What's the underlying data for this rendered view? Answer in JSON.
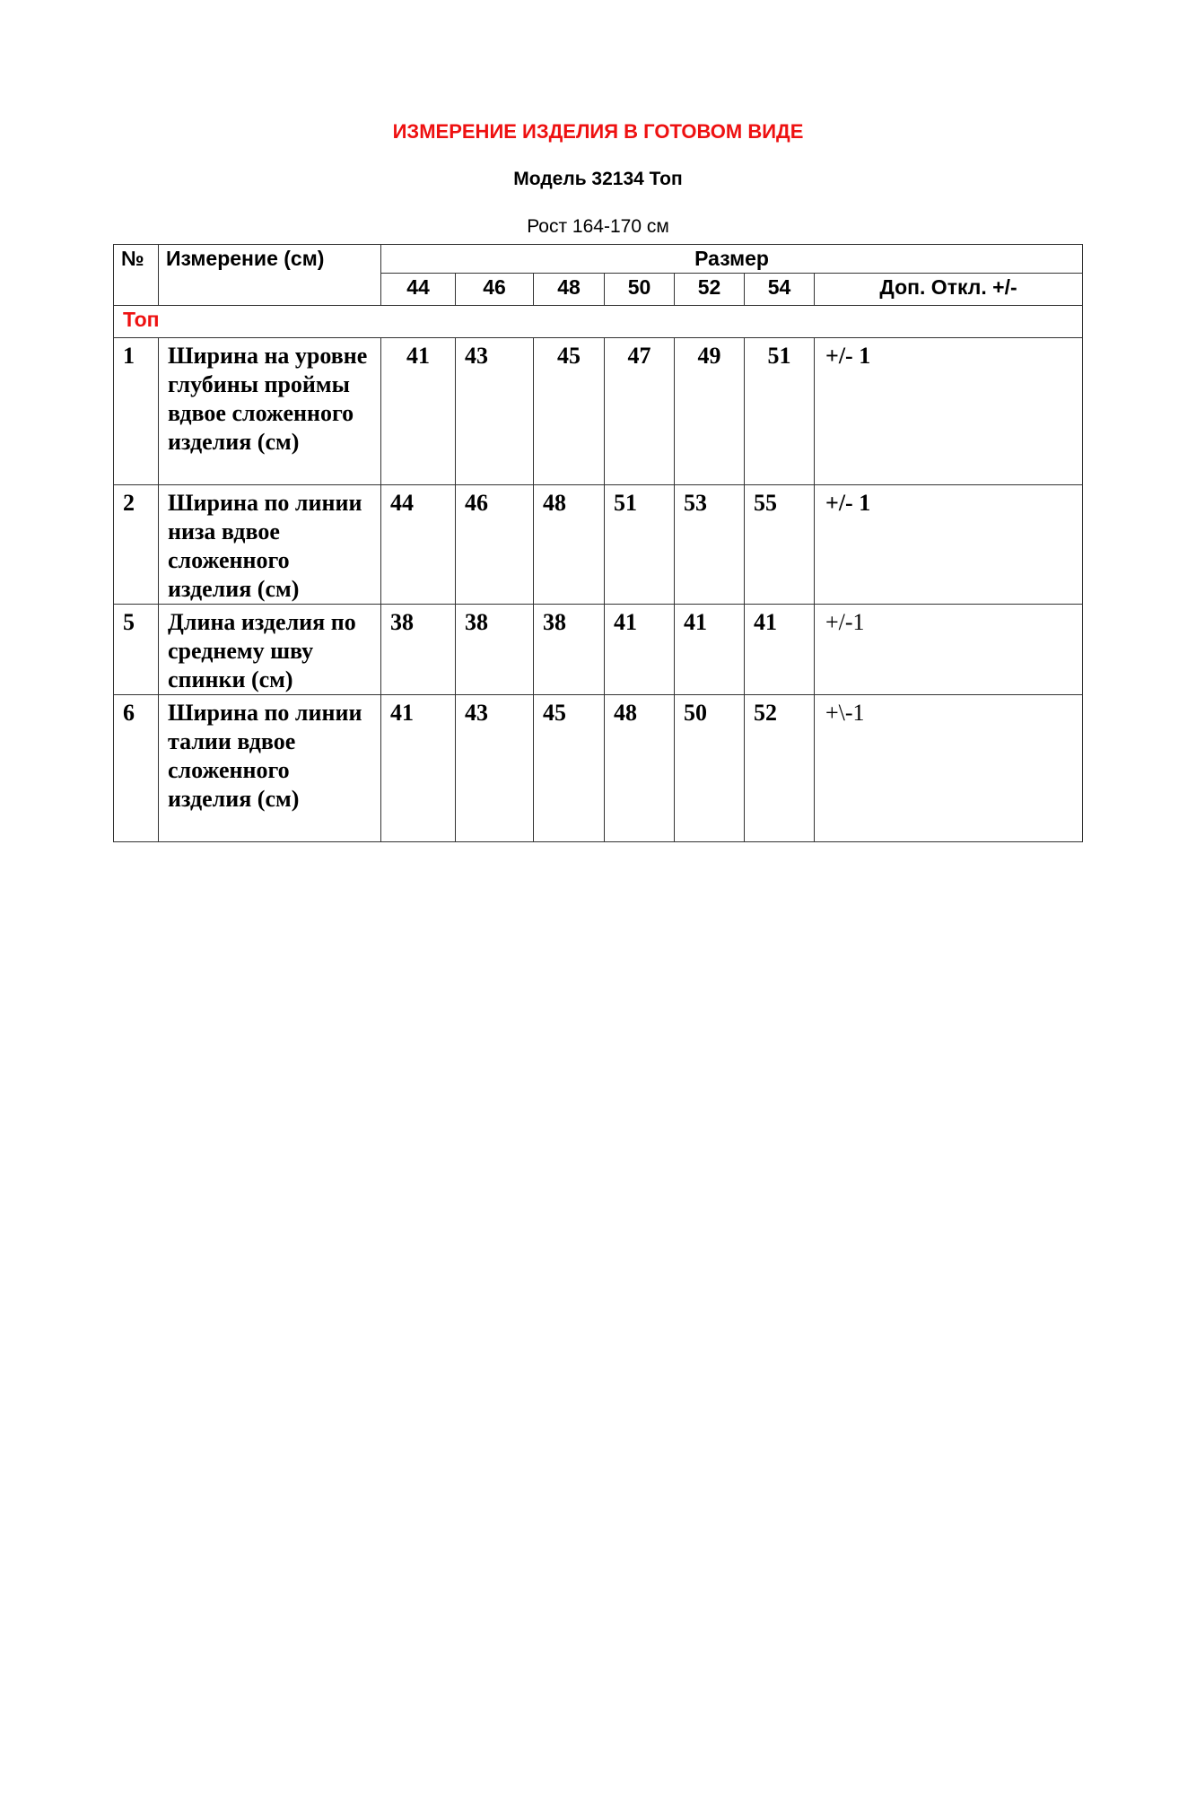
{
  "title": "ИЗМЕРЕНИЕ ИЗДЕЛИЯ В ГОТОВОМ ВИДЕ",
  "model": "Модель 32134 Топ",
  "height": "Рост 164-170 см",
  "colors": {
    "accent": "#ee1111"
  },
  "table": {
    "col_no": "№",
    "col_measure": "Измерение (см)",
    "col_size": "Размер",
    "sizes": [
      "44",
      "46",
      "48",
      "50",
      "52",
      "54"
    ],
    "col_tolerance": "Доп.  Откл. +/-",
    "section": "Топ",
    "rows": [
      {
        "no": "1",
        "name": "Ширина на уровне глубины проймы вдвое сложенного изделия (см)",
        "values": [
          "41",
          "43",
          "45",
          "47",
          "49",
          "51"
        ],
        "tolerance": "+/- 1"
      },
      {
        "no": "2",
        "name": "Ширина по линии низа вдвое сложенного изделия (см)",
        "values": [
          "44",
          "46",
          "48",
          "51",
          "53",
          "55"
        ],
        "tolerance": "+/- 1"
      },
      {
        "no": "5",
        "name": "Длина изделия по среднему шву спинки (см)",
        "values": [
          "38",
          "38",
          "38",
          "41",
          "41",
          "41"
        ],
        "tolerance": "+/-1"
      },
      {
        "no": "6",
        "name": "Ширина по линии талии вдвое сложенного изделия (см)",
        "values": [
          "41",
          "43",
          "45",
          "48",
          "50",
          "52"
        ],
        "tolerance": "+\\-1"
      }
    ]
  }
}
